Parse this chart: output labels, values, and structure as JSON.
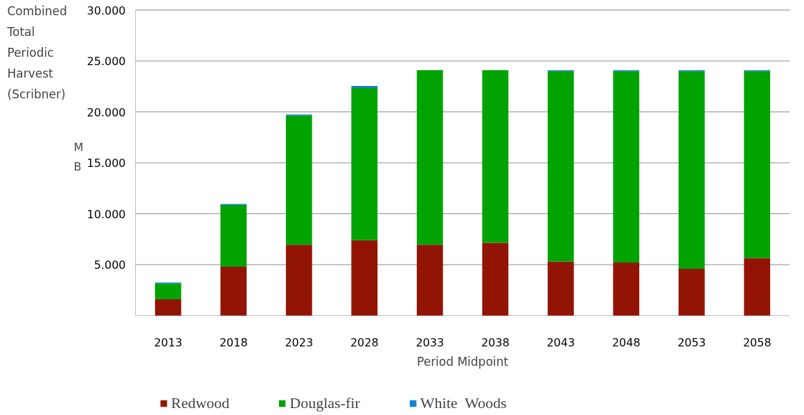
{
  "chart_data": {
    "type": "bar",
    "stacked": true,
    "ylabel": "Combined Total Periodic Harvest (Scribner)",
    "xlabel": "Period Midpoint",
    "annotations": [
      "MB"
    ],
    "categories": [
      "2013",
      "2018",
      "2023",
      "2028",
      "2033",
      "2038",
      "2043",
      "2048",
      "2053",
      "2058"
    ],
    "series": [
      {
        "name": "Redwood",
        "color": "#921405",
        "values": [
          1600,
          4800,
          6950,
          7400,
          6950,
          7150,
          5300,
          5200,
          4600,
          5650
        ]
      },
      {
        "name": "Douglas-fir",
        "color": "#00a300",
        "values": [
          1550,
          6050,
          12700,
          14950,
          17150,
          16950,
          18700,
          18800,
          19400,
          18350
        ]
      },
      {
        "name": "White  Woods",
        "color": "#1a7fd0",
        "values": [
          100,
          100,
          100,
          200,
          0,
          0,
          100,
          100,
          100,
          100
        ]
      }
    ],
    "ylim": [
      0,
      30000
    ],
    "yticks": [
      {
        "value": 5000,
        "label": "5.000"
      },
      {
        "value": 10000,
        "label": "10.000"
      },
      {
        "value": 15000,
        "label": "15.000"
      },
      {
        "value": 20000,
        "label": "20.000"
      },
      {
        "value": 25000,
        "label": "25.000"
      },
      {
        "value": 30000,
        "label": "30.000"
      }
    ],
    "grid": "y",
    "legend": "bottom"
  }
}
